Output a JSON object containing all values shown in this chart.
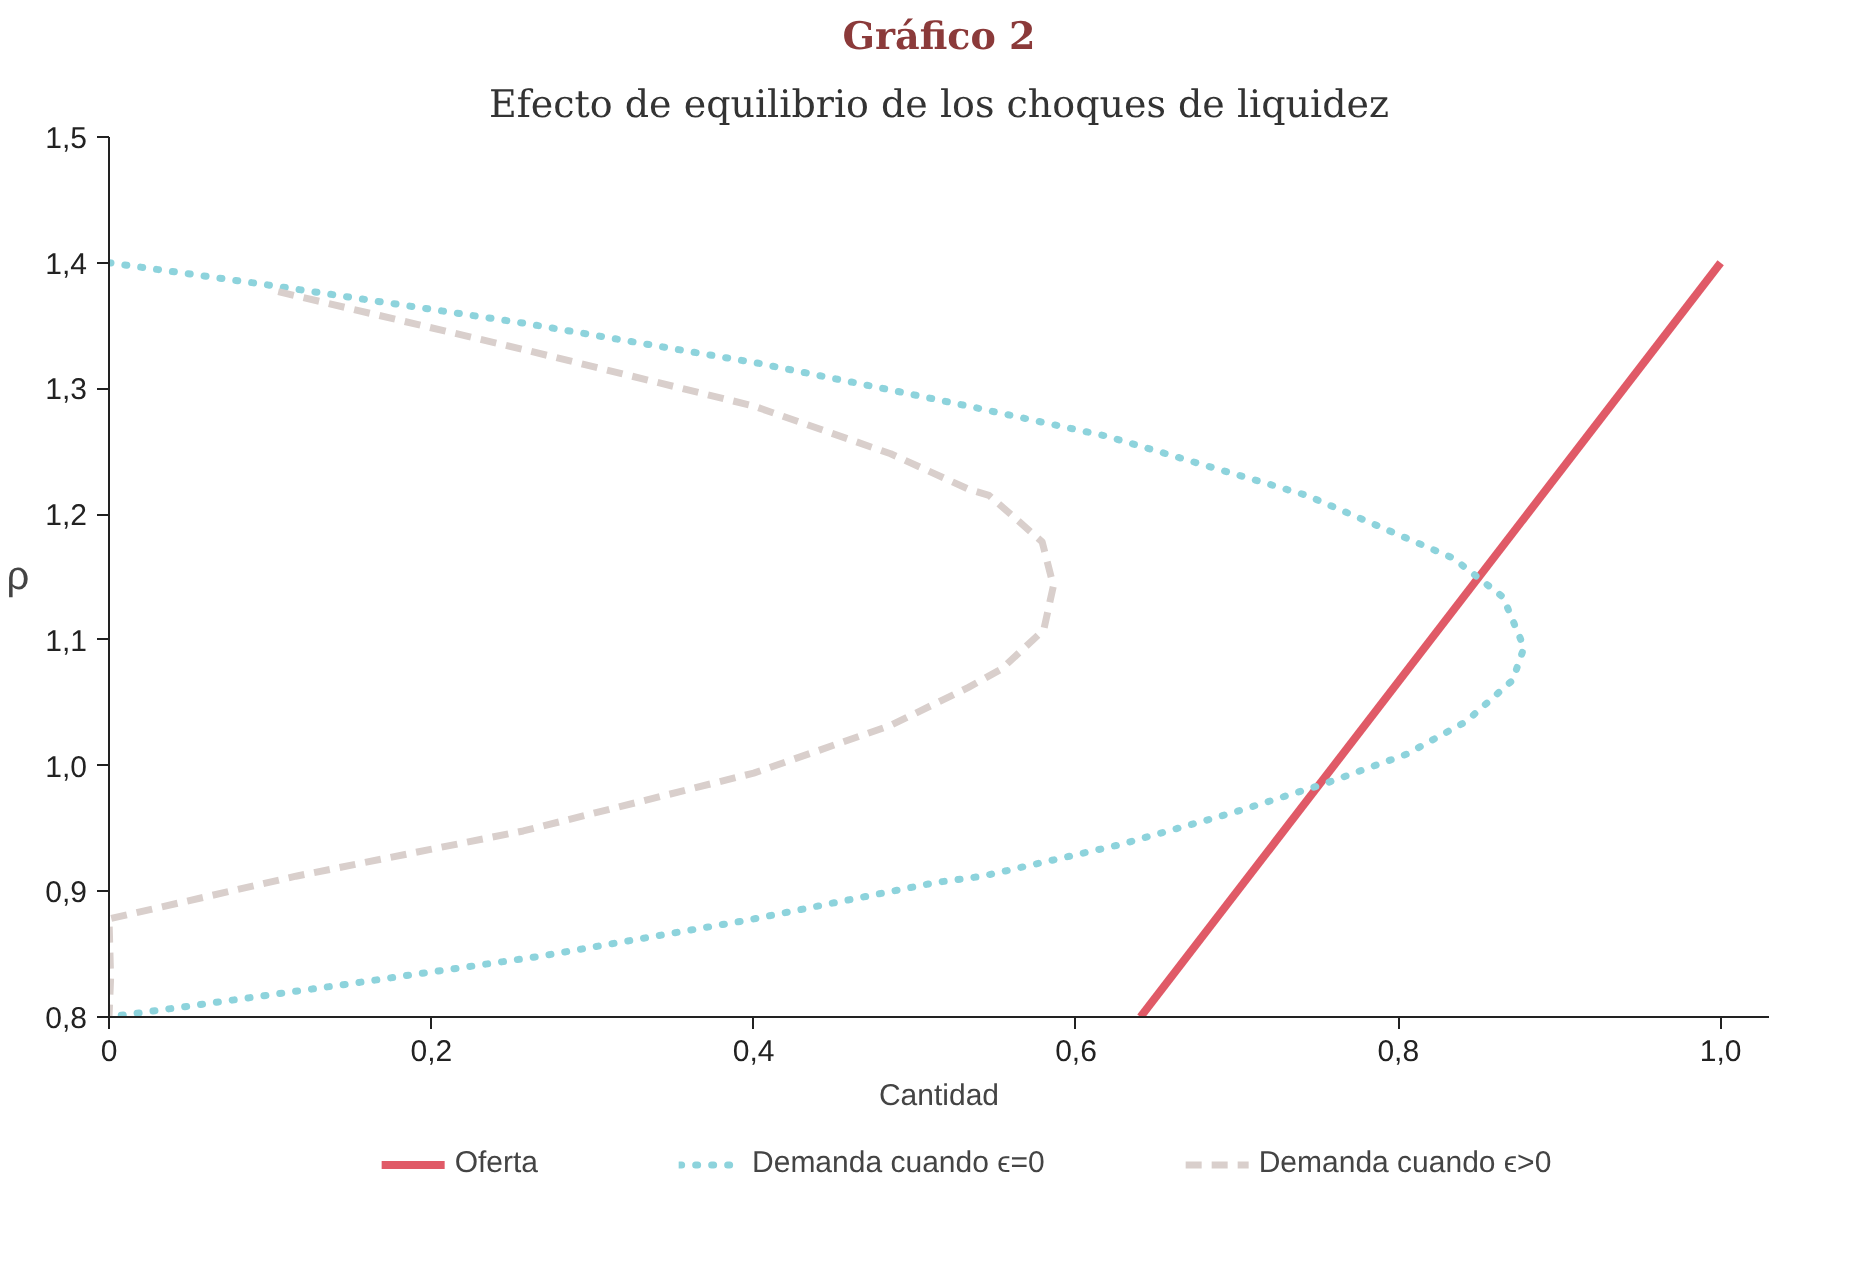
{
  "chart_data": {
    "type": "line",
    "title": "Gráfico 2",
    "subtitle": "Efecto de equilibrio de los choques de liquidez",
    "xlabel": "Cantidad",
    "ylabel": "ρ",
    "xlim": [
      0,
      1.03
    ],
    "ylim": [
      0.8,
      1.5
    ],
    "xticks": [
      0,
      {
        "value": 0.2,
        "label": "0,2"
      },
      {
        "value": 0.4,
        "label": "0,4"
      },
      {
        "value": 0.6,
        "label": "0,6"
      },
      {
        "value": 0.8,
        "label": "0,8"
      },
      {
        "value": 1.0,
        "label": "1,0"
      }
    ],
    "yticks": [
      {
        "value": 0.8,
        "label": "0,8"
      },
      {
        "value": 0.9,
        "label": "0,9"
      },
      {
        "value": 1.0,
        "label": "1,0"
      },
      {
        "value": 1.1,
        "label": "1,1"
      },
      {
        "value": 1.2,
        "label": "1,2"
      },
      {
        "value": 1.3,
        "label": "1,3"
      },
      {
        "value": 1.4,
        "label": "1,4"
      },
      {
        "value": 1.5,
        "label": "1,5"
      }
    ],
    "grid": false,
    "legend": "bottom",
    "marker": "none",
    "series": [
      {
        "name": "Oferta",
        "color": "#e05a67",
        "line_style": "solid",
        "x": [
          0.64,
          1.0
        ],
        "values": [
          0.8,
          1.4
        ]
      },
      {
        "name": "Demanda cuando ϵ=0",
        "color": "#8dd3dc",
        "line_style": "dotted",
        "x": [
          0,
          0.095,
          0.257,
          0.403,
          0.488,
          0.533,
          0.619,
          0.743,
          0.834,
          0.865,
          0.878,
          0.871,
          0.842,
          0.805,
          0.753,
          0.696,
          0.627,
          0.542,
          0.513,
          0.396,
          0.266,
          0.147,
          0.046,
          0
        ],
        "values": [
          1.4,
          1.383,
          1.352,
          1.32,
          1.298,
          1.286,
          1.262,
          1.215,
          1.165,
          1.134,
          1.094,
          1.068,
          1.035,
          1.009,
          0.985,
          0.962,
          0.937,
          0.912,
          0.907,
          0.877,
          0.848,
          0.826,
          0.808,
          0.8
        ]
      },
      {
        "name": "Demanda cuando ϵ>0",
        "color": "#d9cfcc",
        "line_style": "dashed",
        "x": [
          0.105,
          0.257,
          0.4,
          0.485,
          0.533,
          0.546,
          0.579,
          0.586,
          0.58,
          0.554,
          0.533,
          0.485,
          0.4,
          0.257,
          0.116,
          0,
          0.001,
          0
        ],
        "values": [
          1.377,
          1.331,
          1.286,
          1.248,
          1.22,
          1.215,
          1.178,
          1.143,
          1.108,
          1.077,
          1.062,
          1.032,
          0.994,
          0.948,
          0.912,
          0.878,
          0.831,
          0.8
        ]
      }
    ]
  }
}
